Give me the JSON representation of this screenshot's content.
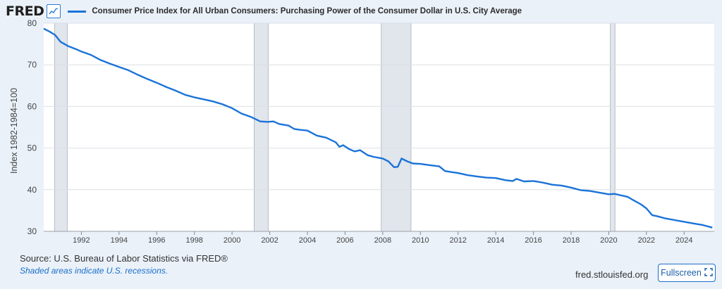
{
  "header": {
    "logo_text": "FRED",
    "logo_icon": "line-chart-icon",
    "series_title": "Consumer Price Index for All Urban Consumers: Purchasing Power of the Consumer Dollar in U.S. City Average"
  },
  "colors": {
    "background": "#eaf1f9",
    "plot_background": "#ffffff",
    "series_line": "#1a73d8",
    "recession_shade": "#e1e5ec",
    "grid": "#dcdfe4",
    "accent": "#1a6fc9"
  },
  "footer": {
    "source": "Source: U.S. Bureau of Labor Statistics via FRED®",
    "note": "Shaded areas indicate U.S. recessions.",
    "url": "fred.stlouisfed.org",
    "fullscreen_label": "Fullscreen",
    "fullscreen_icon": "expand-icon"
  },
  "chart_data": {
    "type": "line",
    "title": "Consumer Price Index for All Urban Consumers: Purchasing Power of the Consumer Dollar in U.S. City Average",
    "xlabel": "",
    "ylabel": "Index 1982-1984=100",
    "xlim": [
      1990.0,
      2025.6
    ],
    "ylim": [
      30,
      80
    ],
    "yticks": [
      30,
      40,
      50,
      60,
      70,
      80
    ],
    "xticks": [
      1992,
      1994,
      1996,
      1998,
      2000,
      2002,
      2004,
      2006,
      2008,
      2010,
      2012,
      2014,
      2016,
      2018,
      2020,
      2022,
      2024
    ],
    "grid": true,
    "recessions": [
      [
        1990.58,
        1991.25
      ],
      [
        2001.17,
        2001.92
      ],
      [
        2007.92,
        2009.5
      ],
      [
        2020.08,
        2020.33
      ]
    ],
    "series": [
      {
        "name": "Purchasing Power of the Consumer Dollar",
        "x": [
          1990.0,
          1990.3,
          1990.6,
          1990.9,
          1991.3,
          1991.7,
          1992.0,
          1992.5,
          1993.0,
          1993.5,
          1994.0,
          1994.5,
          1995.0,
          1995.5,
          1996.0,
          1996.5,
          1997.0,
          1997.5,
          1998.0,
          1998.5,
          1999.0,
          1999.5,
          2000.0,
          2000.5,
          2001.0,
          2001.5,
          2001.9,
          2002.2,
          2002.5,
          2003.0,
          2003.3,
          2003.6,
          2004.0,
          2004.5,
          2005.0,
          2005.5,
          2005.7,
          2005.9,
          2006.2,
          2006.5,
          2006.8,
          2007.2,
          2007.5,
          2008.0,
          2008.3,
          2008.6,
          2008.8,
          2009.0,
          2009.3,
          2009.6,
          2010.0,
          2010.5,
          2011.0,
          2011.3,
          2011.7,
          2012.0,
          2012.5,
          2013.0,
          2013.5,
          2014.0,
          2014.5,
          2014.9,
          2015.1,
          2015.5,
          2016.0,
          2016.5,
          2017.0,
          2017.5,
          2018.0,
          2018.5,
          2019.0,
          2019.5,
          2020.0,
          2020.3,
          2020.6,
          2021.0,
          2021.3,
          2021.7,
          2022.0,
          2022.3,
          2022.6,
          2023.0,
          2023.5,
          2024.0,
          2024.5,
          2025.0,
          2025.5
        ],
        "values": [
          78.7,
          78.0,
          77.2,
          75.5,
          74.5,
          73.8,
          73.2,
          72.4,
          71.2,
          70.3,
          69.5,
          68.7,
          67.6,
          66.6,
          65.7,
          64.7,
          63.8,
          62.8,
          62.2,
          61.7,
          61.2,
          60.5,
          59.6,
          58.3,
          57.5,
          56.4,
          56.3,
          56.4,
          55.8,
          55.4,
          54.6,
          54.4,
          54.2,
          53.0,
          52.5,
          51.4,
          50.3,
          50.7,
          49.8,
          49.2,
          49.5,
          48.3,
          47.9,
          47.5,
          46.8,
          45.4,
          45.5,
          47.5,
          46.8,
          46.3,
          46.2,
          45.9,
          45.6,
          44.5,
          44.2,
          44.0,
          43.5,
          43.2,
          42.9,
          42.8,
          42.3,
          42.1,
          42.6,
          42.0,
          42.1,
          41.7,
          41.2,
          41.0,
          40.5,
          39.9,
          39.7,
          39.3,
          38.9,
          39.0,
          38.7,
          38.3,
          37.5,
          36.5,
          35.5,
          33.9,
          33.6,
          33.1,
          32.7,
          32.3,
          31.9,
          31.5,
          30.9
        ]
      }
    ]
  }
}
